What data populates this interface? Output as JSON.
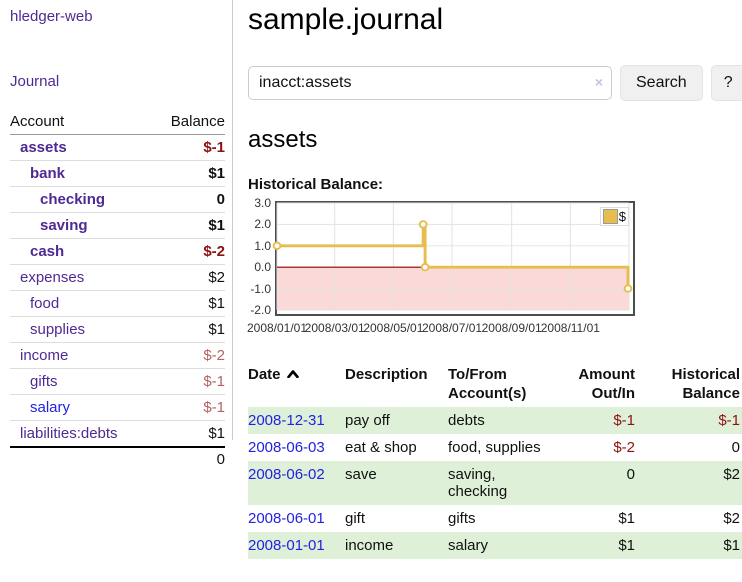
{
  "app": {
    "title": "hledger-web"
  },
  "sidebar": {
    "journal_label": "Journal",
    "accounts_table": {
      "headers": [
        "Account",
        "Balance"
      ],
      "rows": [
        {
          "account": "assets",
          "balance": "$-1",
          "depth": 1,
          "emphasis": true,
          "link_style": "purple"
        },
        {
          "account": "bank",
          "balance": "$1",
          "depth": 2,
          "emphasis": true,
          "link_style": "purple"
        },
        {
          "account": "checking",
          "balance": "0",
          "depth": 3,
          "emphasis": true,
          "link_style": "purple"
        },
        {
          "account": "saving",
          "balance": "$1",
          "depth": 3,
          "emphasis": true,
          "link_style": "purple"
        },
        {
          "account": "cash",
          "balance": "$-2",
          "depth": 2,
          "emphasis": true,
          "link_style": "purple"
        },
        {
          "account": "expenses",
          "balance": "$2",
          "depth": 1,
          "emphasis": false,
          "link_style": "purple"
        },
        {
          "account": "food",
          "balance": "$1",
          "depth": 2,
          "emphasis": false,
          "link_style": "purple"
        },
        {
          "account": "supplies",
          "balance": "$1",
          "depth": 2,
          "emphasis": false,
          "link_style": "purple"
        },
        {
          "account": "income",
          "balance": "$-2",
          "depth": 1,
          "emphasis": false,
          "link_style": "purple"
        },
        {
          "account": "gifts",
          "balance": "$-1",
          "depth": 2,
          "emphasis": false,
          "link_style": "purple"
        },
        {
          "account": "salary",
          "balance": "$-1",
          "depth": 2,
          "emphasis": false,
          "link_style": "blue"
        },
        {
          "account": "liabilities:debts",
          "balance": "$1",
          "depth": 1,
          "emphasis": false,
          "link_style": "purple"
        }
      ],
      "total": "0"
    }
  },
  "main": {
    "title": "sample.journal",
    "search": {
      "value": "inacct:assets",
      "clear_icon": "×",
      "button_label": "Search",
      "help_label": "?"
    },
    "account_heading": "assets",
    "register_table": {
      "headers": [
        "Date",
        "Description",
        "To/From Account(s)",
        "Amount Out/In",
        "Historical Balance"
      ],
      "rows": [
        {
          "date": "2008-12-31",
          "description": "pay off",
          "accounts": "debts",
          "amount": "$-1",
          "balance": "$-1"
        },
        {
          "date": "2008-06-03",
          "description": "eat & shop",
          "accounts": "food, supplies",
          "amount": "$-2",
          "balance": "0"
        },
        {
          "date": "2008-06-02",
          "description": "save",
          "accounts": "saving, checking",
          "amount": "0",
          "balance": "$2"
        },
        {
          "date": "2008-06-01",
          "description": "gift",
          "accounts": "gifts",
          "amount": "$1",
          "balance": "$2"
        },
        {
          "date": "2008-01-01",
          "description": "income",
          "accounts": "salary",
          "amount": "$1",
          "balance": "$1"
        }
      ]
    }
  },
  "chart_data": {
    "type": "line",
    "title": "Historical Balance:",
    "series": [
      {
        "name": "$",
        "color": "#e7bd4f",
        "step": true,
        "points": [
          {
            "date": "2008-01-01",
            "value": 1
          },
          {
            "date": "2008-06-01",
            "value": 2
          },
          {
            "date": "2008-06-03",
            "value": 0
          },
          {
            "date": "2008-12-31",
            "value": -1
          }
        ]
      }
    ],
    "x_range": [
      "2008-01-01",
      "2009-01-01"
    ],
    "x_tick_labels": [
      "2008/01/01",
      "2008/03/01",
      "2008/05/01",
      "2008/07/01",
      "2008/09/01",
      "2008/11/01"
    ],
    "y_ticks": [
      3.0,
      2.0,
      1.0,
      0.0,
      -1.0,
      -2.0
    ],
    "ylim": [
      -2,
      3
    ],
    "grid": true,
    "legend": {
      "position": "top-right",
      "label": "$"
    },
    "grid_color": "#e2e2e2",
    "negative_region_color": "#fbd9d9",
    "zero_line_color": "#8b0000"
  }
}
